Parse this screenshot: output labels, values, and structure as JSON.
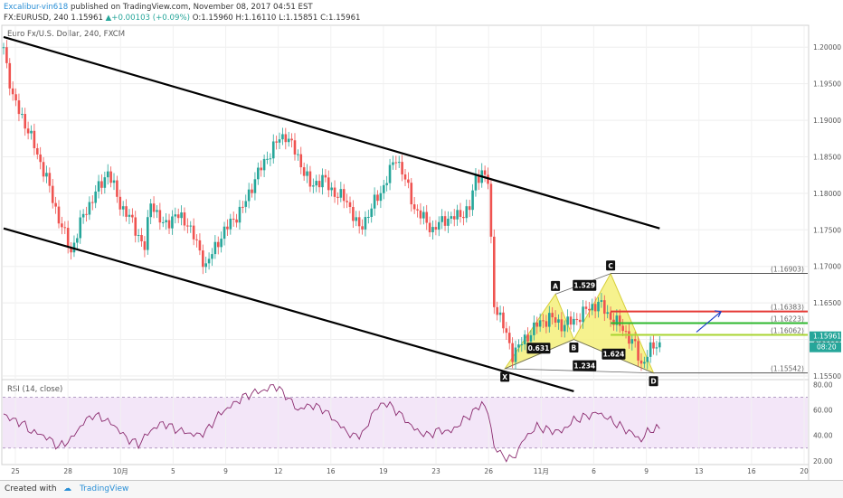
{
  "header": {
    "author": "Excalibur-vin618",
    "published_text": "published on TradingView.com, November 08, 2017 04:51 EST",
    "symbol": "FX:EURUSD, 240",
    "last": "1.15961",
    "change": "▲+0.00103 (+0.09%)",
    "open": "O:1.15960",
    "high": "H:1.16110",
    "low": "L:1.15851",
    "close": "C:1.15961"
  },
  "chart_title": "Euro Fx/U.S. Dollar, 240, FXCM",
  "rsi_label": "RSI (14, close)",
  "footer": {
    "created_with": "Created with",
    "brand": "TradingView"
  },
  "colors": {
    "up": "#26a69a",
    "down": "#ef5350",
    "rsi_band": "#f3e6f8",
    "pattern_fill": "#f5f07a",
    "line_red": "#e53935",
    "line_green": "#2eb82e",
    "line_yellowgreen": "#a8d432",
    "line_gray": "#555555",
    "arrow": "#1e3fc8"
  },
  "chart_data": [
    {
      "type": "candlestick",
      "title": "Euro Fx/U.S. Dollar, 240, FXCM",
      "ylim": [
        1.1545,
        1.203
      ],
      "y_ticks": [
        "1.20000",
        "1.19500",
        "1.19000",
        "1.18500",
        "1.18000",
        "1.17500",
        "1.17000",
        "1.16500",
        "1.16000",
        "1.15500"
      ],
      "x_ticks": [
        "25",
        "28",
        "10月",
        "5",
        "9",
        "12",
        "16",
        "19",
        "23",
        "26",
        "11月",
        "6",
        "9",
        "13",
        "16",
        "20"
      ],
      "last_price_label": "1.15961",
      "countdown_label": "08:20",
      "close_path": [
        [
          0,
          1.2
        ],
        [
          3,
          1.193
        ],
        [
          6,
          1.1905
        ],
        [
          10,
          1.1865
        ],
        [
          14,
          1.182
        ],
        [
          18,
          1.1765
        ],
        [
          22,
          1.172
        ],
        [
          26,
          1.177
        ],
        [
          30,
          1.18
        ],
        [
          34,
          1.183
        ],
        [
          38,
          1.1785
        ],
        [
          42,
          1.176
        ],
        [
          46,
          1.1725
        ],
        [
          48,
          1.179
        ],
        [
          52,
          1.1755
        ],
        [
          56,
          1.177
        ],
        [
          60,
          1.176
        ],
        [
          64,
          1.172
        ],
        [
          66,
          1.17
        ],
        [
          70,
          1.1735
        ],
        [
          74,
          1.176
        ],
        [
          78,
          1.178
        ],
        [
          82,
          1.182
        ],
        [
          86,
          1.185
        ],
        [
          90,
          1.1875
        ],
        [
          92,
          1.188
        ],
        [
          96,
          1.185
        ],
        [
          100,
          1.181
        ],
        [
          104,
          1.182
        ],
        [
          108,
          1.18
        ],
        [
          112,
          1.179
        ],
        [
          116,
          1.175
        ],
        [
          120,
          1.178
        ],
        [
          124,
          1.181
        ],
        [
          128,
          1.185
        ],
        [
          130,
          1.183
        ],
        [
          134,
          1.178
        ],
        [
          138,
          1.176
        ],
        [
          140,
          1.175
        ],
        [
          144,
          1.1765
        ],
        [
          148,
          1.1768
        ],
        [
          152,
          1.178
        ],
        [
          154,
          1.182
        ],
        [
          156,
          1.183
        ],
        [
          158,
          1.1815
        ],
        [
          160,
          1.165
        ],
        [
          162,
          1.163
        ],
        [
          166,
          1.158
        ],
        [
          170,
          1.16
        ],
        [
          174,
          1.162
        ],
        [
          178,
          1.163
        ],
        [
          182,
          1.162
        ],
        [
          186,
          1.1625
        ],
        [
          190,
          1.164
        ],
        [
          194,
          1.165
        ],
        [
          198,
          1.163
        ],
        [
          202,
          1.1615
        ],
        [
          206,
          1.159
        ],
        [
          208,
          1.1565
        ],
        [
          210,
          1.158
        ],
        [
          212,
          1.159
        ],
        [
          214,
          1.1596
        ]
      ],
      "x_max": 262,
      "harmonic_pattern": {
        "points": [
          {
            "label": "X",
            "x": 163.5,
            "price": 1.156
          },
          {
            "label": "A",
            "x": 180,
            "price": 1.1662
          },
          {
            "label": "B",
            "x": 186,
            "price": 1.16
          },
          {
            "label": "C",
            "x": 198,
            "price": 1.169
          },
          {
            "label": "D",
            "x": 212,
            "price": 1.1554
          }
        ],
        "ratios": [
          {
            "label": "0.631",
            "x": 174.5,
            "price": 1.1588
          },
          {
            "label": "1.529",
            "x": 189.5,
            "price": 1.1674
          },
          {
            "label": "1.624",
            "x": 199,
            "price": 1.158
          },
          {
            "label": "1.234",
            "x": 189.5,
            "price": 1.1564
          }
        ]
      },
      "levels": [
        {
          "label": "(1.16903)",
          "price": 1.16903,
          "color": "#555555",
          "x_start": 198
        },
        {
          "label": "(1.16383)",
          "price": 1.16383,
          "color": "#e53935",
          "x_start": 198
        },
        {
          "label": "(1.16223)",
          "price": 1.16223,
          "color": "#2eb82e",
          "x_start": 198
        },
        {
          "label": "(1.16062)",
          "price": 1.16062,
          "color": "#a8d432",
          "x_start": 198
        },
        {
          "label": "(1.15542)",
          "price": 1.15542,
          "color": "#555555",
          "x_start": 212
        }
      ],
      "channel": [
        {
          "x": [
            0,
            214
          ],
          "price": [
            1.2014,
            1.1752
          ]
        },
        {
          "x": [
            0,
            186
          ],
          "price": [
            1.1752,
            1.1529
          ]
        }
      ],
      "arrow": {
        "from": {
          "x": 226,
          "price": 1.161
        },
        "to": {
          "x": 234,
          "price": 1.1638
        }
      }
    },
    {
      "type": "line",
      "title": "RSI (14, close)",
      "ylim": [
        17,
        84
      ],
      "y_ticks": [
        20,
        40,
        60,
        80
      ],
      "band": [
        30,
        70
      ],
      "x_max": 262,
      "rsi_path": [
        [
          0,
          57
        ],
        [
          3,
          52
        ],
        [
          6,
          50
        ],
        [
          9,
          43
        ],
        [
          12,
          41
        ],
        [
          15,
          37
        ],
        [
          18,
          31
        ],
        [
          22,
          37
        ],
        [
          26,
          50
        ],
        [
          29,
          56
        ],
        [
          32,
          54
        ],
        [
          36,
          48
        ],
        [
          40,
          38
        ],
        [
          44,
          33
        ],
        [
          48,
          44
        ],
        [
          52,
          50
        ],
        [
          56,
          45
        ],
        [
          60,
          42
        ],
        [
          63,
          40
        ],
        [
          66,
          43
        ],
        [
          70,
          56
        ],
        [
          74,
          63
        ],
        [
          78,
          70
        ],
        [
          82,
          74
        ],
        [
          86,
          76
        ],
        [
          88,
          80
        ],
        [
          92,
          72
        ],
        [
          96,
          60
        ],
        [
          100,
          64
        ],
        [
          104,
          61
        ],
        [
          108,
          52
        ],
        [
          110,
          47
        ],
        [
          114,
          39
        ],
        [
          118,
          43
        ],
        [
          120,
          57
        ],
        [
          124,
          66
        ],
        [
          127,
          62
        ],
        [
          130,
          55
        ],
        [
          134,
          45
        ],
        [
          138,
          40
        ],
        [
          142,
          44
        ],
        [
          146,
          43
        ],
        [
          150,
          52
        ],
        [
          154,
          60
        ],
        [
          156,
          66
        ],
        [
          158,
          58
        ],
        [
          160,
          32
        ],
        [
          162,
          25
        ],
        [
          166,
          21
        ],
        [
          170,
          38
        ],
        [
          174,
          47
        ],
        [
          178,
          44
        ],
        [
          182,
          43
        ],
        [
          186,
          52
        ],
        [
          190,
          55
        ],
        [
          194,
          58
        ],
        [
          198,
          52
        ],
        [
          202,
          46
        ],
        [
          206,
          40
        ],
        [
          208,
          36
        ],
        [
          210,
          43
        ],
        [
          212,
          45
        ],
        [
          214,
          45
        ]
      ]
    }
  ]
}
